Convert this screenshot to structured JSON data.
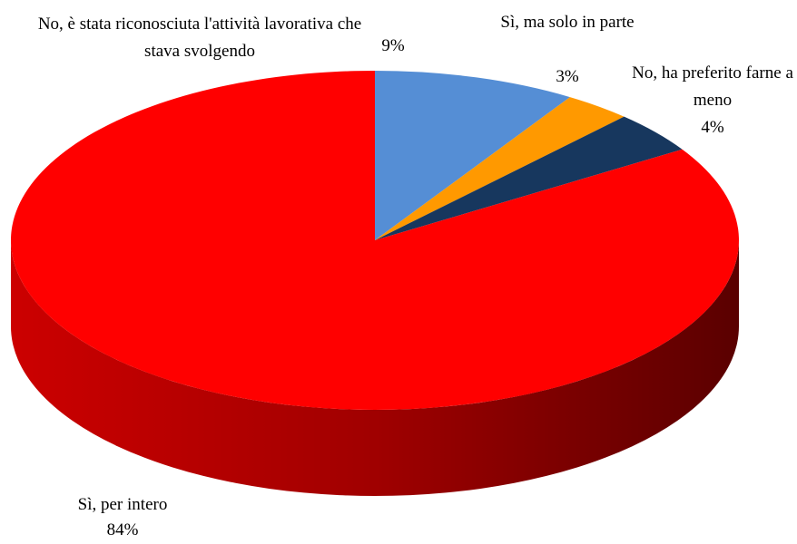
{
  "chart_data": {
    "type": "pie",
    "categories": [
      "No, è stata riconosciuta l'attività lavorativa che stava svolgendo",
      "Sì, ma solo in parte",
      "No, ha preferito farne a meno",
      "Sì, per intero"
    ],
    "values": [
      9,
      3,
      4,
      84
    ],
    "value_labels": [
      "9%",
      "3%",
      "4%",
      "84%"
    ],
    "colors": [
      "#558ed5",
      "#ff9900",
      "#17375e",
      "#ff0000"
    ]
  }
}
